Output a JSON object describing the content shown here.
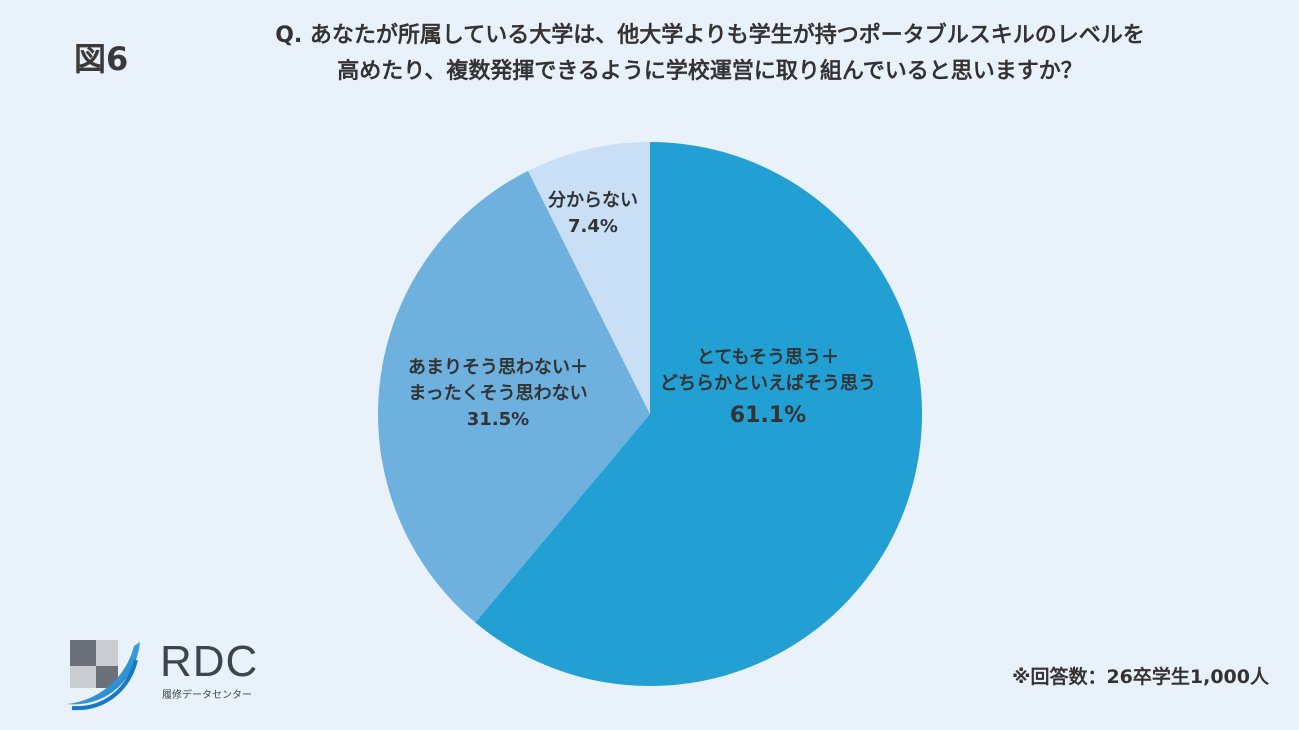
{
  "figure_label": "図6",
  "question": {
    "line1": "Q. あなたが所属している大学は、他大学よりも学生が持つポータブルスキルのレベルを",
    "line2": "高めたり、複数発揮できるように学校運営に取り組んでいると思いますか？"
  },
  "note": "※回答数：26卒学生1,000人",
  "logo": {
    "name": "RDC",
    "subtitle": "履修データセンター"
  },
  "chart_data": {
    "type": "pie",
    "start": "12 o'clock",
    "direction": "clockwise",
    "slices": [
      {
        "label_lines": [
          "とてもそう思う＋",
          "どちらかといえばそう思う"
        ],
        "value": 61.1,
        "display": "61.1%",
        "color": "#229fd3"
      },
      {
        "label_lines": [
          "あまりそう思わない＋",
          "まったくそう思わない"
        ],
        "value": 31.5,
        "display": "31.5%",
        "color": "#6eb1df"
      },
      {
        "label_lines": [
          "分からない"
        ],
        "value": 7.4,
        "display": "7.4%",
        "color": "#c8dff5"
      }
    ]
  }
}
